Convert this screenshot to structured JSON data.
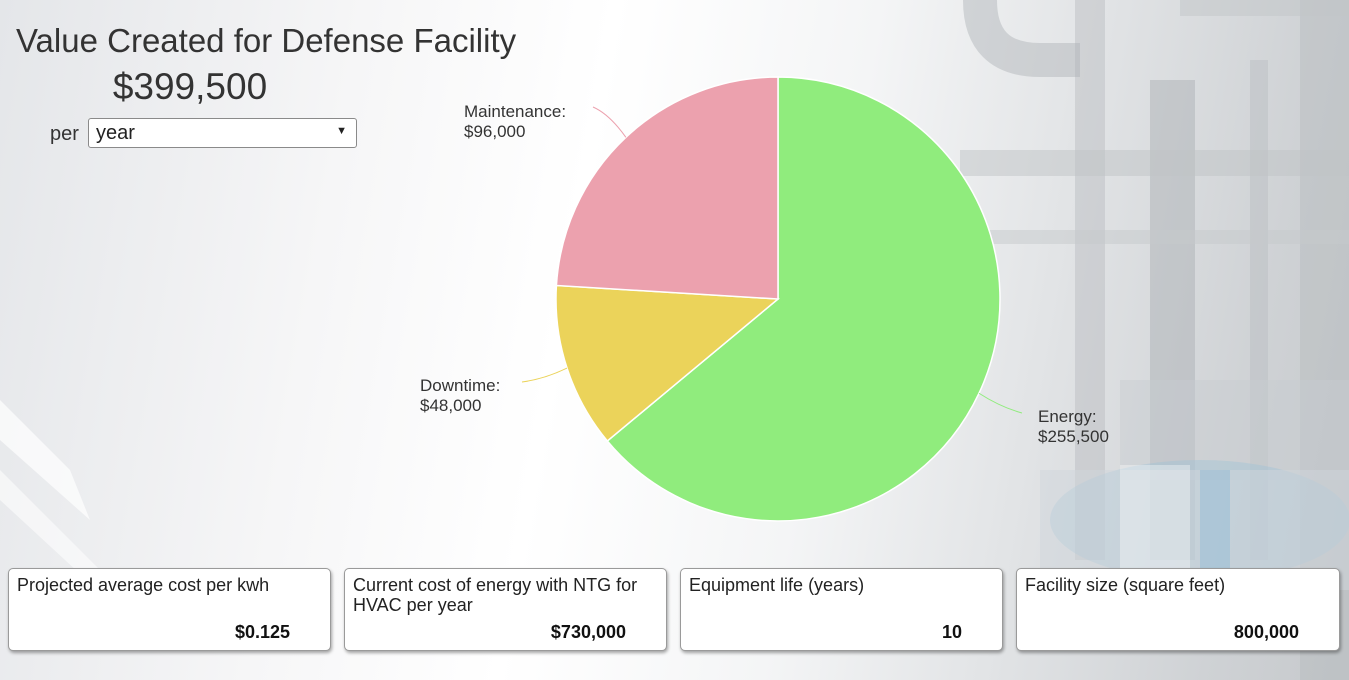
{
  "header": {
    "title": "Value Created for Defense Facility",
    "total": "$399,500",
    "per_label": "per",
    "period_selected": "year"
  },
  "colors": {
    "energy": "#90ec7d",
    "downtime": "#ebd35a",
    "maintenance": "#eca1ae",
    "text": "#333333"
  },
  "chart_data": {
    "type": "pie",
    "title": "",
    "slices": [
      {
        "label": "Energy",
        "value": 255500,
        "display": "$255,500",
        "color": "#90ec7d"
      },
      {
        "label": "Downtime",
        "value": 48000,
        "display": "$48,000",
        "color": "#ebd35a"
      },
      {
        "label": "Maintenance",
        "value": 96000,
        "display": "$96,000",
        "color": "#eca1ae"
      }
    ]
  },
  "cards": [
    {
      "label": "Projected average cost per kwh",
      "value": "$0.125"
    },
    {
      "label": "Current cost of energy with NTG for HVAC per year",
      "value": "$730,000"
    },
    {
      "label": "Equipment life (years)",
      "value": "10"
    },
    {
      "label": "Facility size (square feet)",
      "value": "800,000"
    }
  ]
}
